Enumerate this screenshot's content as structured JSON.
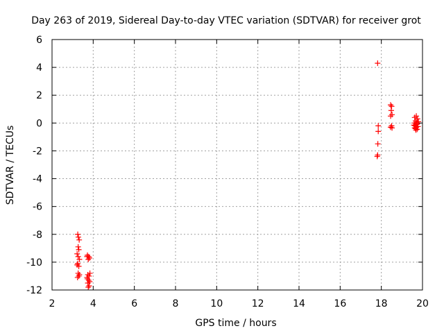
{
  "chart_data": {
    "type": "scatter",
    "title": "Day 263 of 2019, Sidereal Day-to-day VTEC variation (SDTVAR) for receiver grot",
    "xlabel": "GPS time / hours",
    "ylabel": "SDTVAR / TECUs",
    "xlim": [
      2,
      20
    ],
    "ylim": [
      -12,
      6
    ],
    "xticks": [
      2,
      4,
      6,
      8,
      10,
      12,
      14,
      16,
      18,
      20
    ],
    "yticks": [
      -12,
      -10,
      -8,
      -6,
      -4,
      -2,
      0,
      2,
      4,
      6
    ],
    "grid": true,
    "marker": "+",
    "series": [
      {
        "name": "SDTVAR",
        "color": "#ff0000",
        "points": [
          [
            3.25,
            -8.0
          ],
          [
            3.28,
            -8.2
          ],
          [
            3.32,
            -8.4
          ],
          [
            3.27,
            -8.9
          ],
          [
            3.3,
            -9.1
          ],
          [
            3.22,
            -9.4
          ],
          [
            3.27,
            -9.6
          ],
          [
            3.33,
            -9.8
          ],
          [
            3.25,
            -10.1
          ],
          [
            3.3,
            -10.3
          ],
          [
            3.22,
            -10.2
          ],
          [
            3.27,
            -10.8
          ],
          [
            3.3,
            -11.0
          ],
          [
            3.24,
            -11.1
          ],
          [
            3.33,
            -10.9
          ],
          [
            3.72,
            -9.5
          ],
          [
            3.78,
            -9.6
          ],
          [
            3.82,
            -9.7
          ],
          [
            3.76,
            -9.8
          ],
          [
            3.7,
            -9.6
          ],
          [
            3.74,
            -10.9
          ],
          [
            3.8,
            -11.0
          ],
          [
            3.84,
            -10.8
          ],
          [
            3.72,
            -11.2
          ],
          [
            3.78,
            -11.3
          ],
          [
            3.74,
            -11.5
          ],
          [
            3.8,
            -11.7
          ],
          [
            3.76,
            -11.8
          ],
          [
            3.83,
            -11.4
          ],
          [
            3.7,
            -11.1
          ],
          [
            17.82,
            4.3
          ],
          [
            17.85,
            -0.2
          ],
          [
            17.85,
            -0.6
          ],
          [
            17.83,
            -1.5
          ],
          [
            17.82,
            -2.3
          ],
          [
            17.8,
            -2.4
          ],
          [
            18.45,
            1.3
          ],
          [
            18.5,
            1.2
          ],
          [
            18.48,
            0.9
          ],
          [
            18.52,
            0.6
          ],
          [
            18.45,
            0.5
          ],
          [
            18.5,
            -0.2
          ],
          [
            18.45,
            -0.3
          ],
          [
            18.52,
            -0.35
          ],
          [
            19.62,
            0.4
          ],
          [
            19.7,
            0.5
          ],
          [
            19.76,
            0.3
          ],
          [
            19.66,
            0.15
          ],
          [
            19.72,
            0.05
          ],
          [
            19.6,
            0.0
          ],
          [
            19.68,
            -0.1
          ],
          [
            19.75,
            -0.05
          ],
          [
            19.64,
            -0.2
          ],
          [
            19.7,
            -0.3
          ],
          [
            19.78,
            -0.25
          ],
          [
            19.62,
            -0.35
          ],
          [
            19.74,
            -0.45
          ],
          [
            19.68,
            -0.5
          ],
          [
            19.72,
            -0.1
          ],
          [
            19.66,
            -0.4
          ],
          [
            19.8,
            0.1
          ],
          [
            19.58,
            -0.15
          ]
        ]
      }
    ]
  }
}
